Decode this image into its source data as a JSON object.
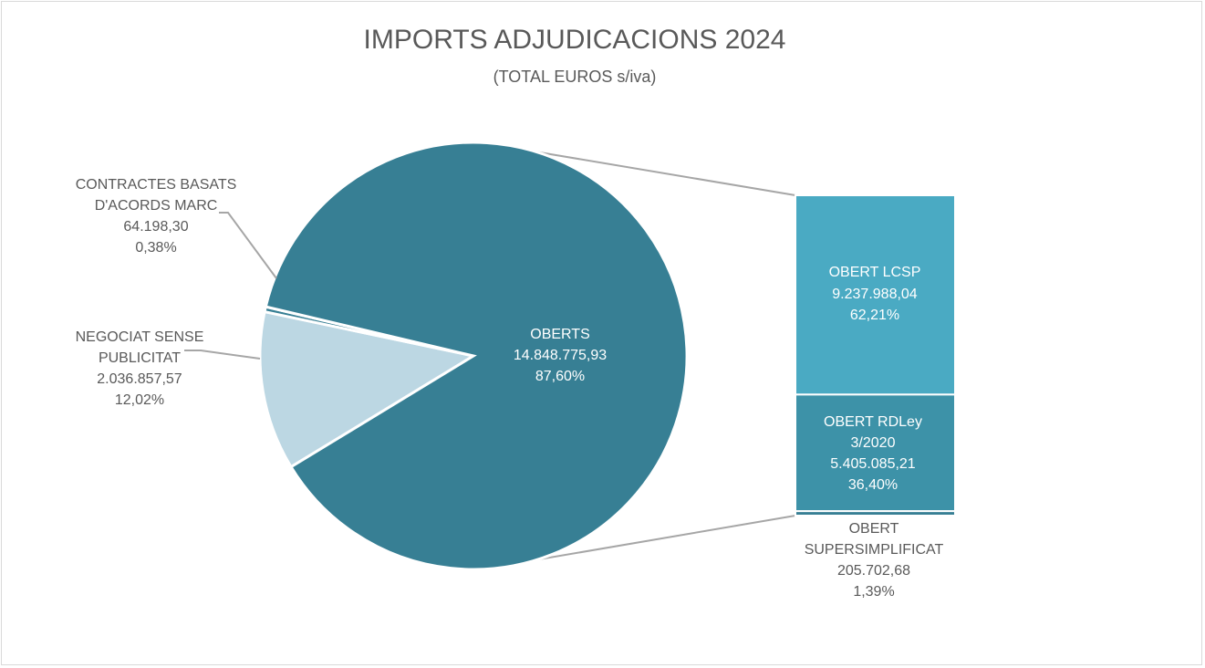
{
  "chart_data": {
    "type": "pie-of-bar",
    "title": "IMPORTS ADJUDICACIONS 2024",
    "subtitle": "(TOTAL EUROS s/iva)",
    "pie": [
      {
        "label": "OBERTS",
        "value_text": "14.848.775,93",
        "percent_text": "87,60%",
        "value": 14848775.93,
        "percent": 87.6,
        "color": "#377f94"
      },
      {
        "label": "NEGOCIAT SENSE PUBLICITAT",
        "value_text": "2.036.857,57",
        "percent_text": "12,02%",
        "value": 2036857.57,
        "percent": 12.02,
        "color": "#bcd7e3"
      },
      {
        "label": "CONTRACTES BASATS D'ACORDS MARC",
        "value_text": "64.198,30",
        "percent_text": "0,38%",
        "value": 64198.3,
        "percent": 0.38,
        "color": "#377f94"
      }
    ],
    "breakdown_of": "OBERTS",
    "bar": [
      {
        "label": "OBERT LCSP",
        "value_text": "9.237.988,04",
        "percent_text": "62,21%",
        "value": 9237988.04,
        "percent": 62.21,
        "color": "#4aaac3"
      },
      {
        "label": "OBERT RDLey 3/2020",
        "value_text": "5.405.085,21",
        "percent_text": "36,40%",
        "value": 5405085.21,
        "percent": 36.4,
        "color": "#3d92a8"
      },
      {
        "label": "OBERT SUPERSIMPLIFICAT",
        "value_text": "205.702,68",
        "percent_text": "1,39%",
        "value": 205702.68,
        "percent": 1.39,
        "color": "#377f94"
      }
    ]
  },
  "labels": {
    "oberts": {
      "l1": "OBERTS",
      "l2": "14.848.775,93",
      "l3": "87,60%"
    },
    "negociat": {
      "l1": "NEGOCIAT SENSE",
      "l2": "PUBLICITAT",
      "l3": "2.036.857,57",
      "l4": "12,02%"
    },
    "basats": {
      "l1": "CONTRACTES BASATS",
      "l2": "D'ACORDS MARC",
      "l3": "64.198,30",
      "l4": "0,38%"
    },
    "lcsp": {
      "l1": "OBERT LCSP",
      "l2": "9.237.988,04",
      "l3": "62,21%"
    },
    "rdley": {
      "l1": "OBERT RDLey",
      "l2": "3/2020",
      "l3": "5.405.085,21",
      "l4": "36,40%"
    },
    "super": {
      "l1": "OBERT",
      "l2": "SUPERSIMPLIFICAT",
      "l3": "205.702,68",
      "l4": "1,39%"
    }
  }
}
